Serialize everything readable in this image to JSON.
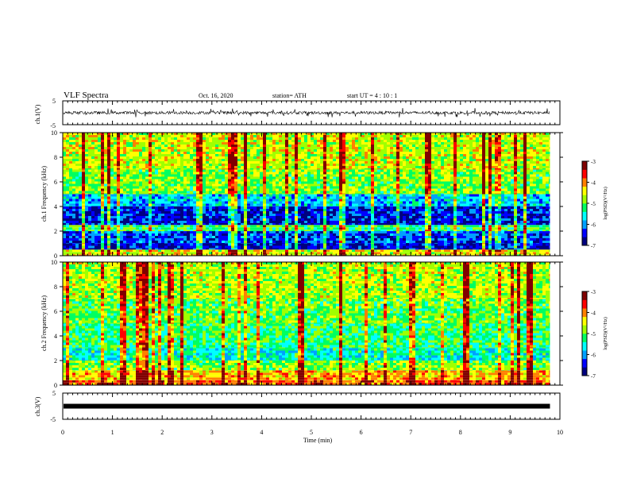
{
  "header": {
    "title": "VLF Spectra",
    "date": "Oct. 16, 2020",
    "station": "station= ATH",
    "start": "start  UT =   4 : 10 : 1"
  },
  "colors": {
    "trace": "#000000",
    "colormap": [
      "#000080",
      "#0000ff",
      "#00a0ff",
      "#00ffff",
      "#00ff60",
      "#a0ff00",
      "#ffff00",
      "#ff8000",
      "#ff0000",
      "#800000"
    ]
  },
  "chart_data": [
    {
      "type": "line",
      "panel": "ch1-waveform",
      "ylabel": "ch.1(V)",
      "ylim": [
        -5,
        5
      ],
      "yticks": [
        "5",
        "-5"
      ],
      "xlim": [
        0,
        10
      ],
      "trace_range_approx": [
        -2,
        2
      ],
      "series": [
        {
          "values": []
        }
      ]
    },
    {
      "type": "heatmap",
      "panel": "ch1-spectrogram",
      "ylabel": "ch.1 Frequency (kHz)",
      "ylim": [
        0,
        10
      ],
      "yticks": [
        "0",
        "2",
        "4",
        "6",
        "8",
        "10"
      ],
      "xlim": [
        0,
        10
      ],
      "data_end_min": 9.8,
      "colorbar": {
        "label": "log(PSD)(V²/Hz)",
        "range": [
          -7,
          -3
        ],
        "ticks": [
          "-3",
          "-4",
          "-5",
          "-6",
          "-7"
        ]
      },
      "profile_note": "low power (-6 to -7) in 1–5 kHz band, higher (-4 to -5) above 5 kHz; frequent vertical broadband impulses",
      "band_profile": [
        {
          "f": [
            0,
            0.5
          ],
          "level": -4.5
        },
        {
          "f": [
            0.5,
            1.0
          ],
          "level": -6.6
        },
        {
          "f": [
            1.0,
            2.0
          ],
          "level": -6.3
        },
        {
          "f": [
            2.0,
            2.5
          ],
          "level": -5.2
        },
        {
          "f": [
            2.5,
            4.0
          ],
          "level": -6.5
        },
        {
          "f": [
            4.0,
            5.0
          ],
          "level": -5.8
        },
        {
          "f": [
            5.0,
            7.0
          ],
          "level": -4.9
        },
        {
          "f": [
            7.0,
            10.0
          ],
          "level": -4.6
        }
      ]
    },
    {
      "type": "heatmap",
      "panel": "ch2-spectrogram",
      "ylabel": "ch.2 Frequency (kHz)",
      "ylim": [
        0,
        10
      ],
      "yticks": [
        "0",
        "2",
        "4",
        "6",
        "8",
        "10"
      ],
      "xlim": [
        0,
        10
      ],
      "data_end_min": 9.8,
      "colorbar": {
        "label": "log(PSD)(V²/Hz)",
        "range": [
          -7,
          -3
        ],
        "ticks": [
          "-3",
          "-4",
          "-5",
          "-6",
          "-7"
        ]
      },
      "profile_note": "strong power (-3.5 to -4.5) below 2 kHz, moderate (-5) 2–6 kHz, higher above 6 kHz; frequent vertical impulses",
      "band_profile": [
        {
          "f": [
            0,
            0.4
          ],
          "level": -3.8
        },
        {
          "f": [
            0.4,
            1.2
          ],
          "level": -4.2
        },
        {
          "f": [
            1.2,
            2.0
          ],
          "level": -4.9
        },
        {
          "f": [
            2.0,
            3.0
          ],
          "level": -5.5
        },
        {
          "f": [
            3.0,
            5.0
          ],
          "level": -5.2
        },
        {
          "f": [
            5.0,
            7.0
          ],
          "level": -5.0
        },
        {
          "f": [
            7.0,
            10.0
          ],
          "level": -4.7
        }
      ]
    },
    {
      "type": "line",
      "panel": "ch3-waveform",
      "ylabel": "ch.3(V)",
      "ylim": [
        -5,
        5
      ],
      "yticks": [
        "5",
        "0",
        "-5"
      ],
      "xlim": [
        0,
        10
      ],
      "series": [
        {
          "values": [
            0,
            0
          ]
        }
      ]
    }
  ],
  "xaxis": {
    "label": "Time  (min)",
    "ticks": [
      "0",
      "1",
      "2",
      "3",
      "4",
      "5",
      "6",
      "7",
      "8",
      "9",
      "10"
    ]
  }
}
